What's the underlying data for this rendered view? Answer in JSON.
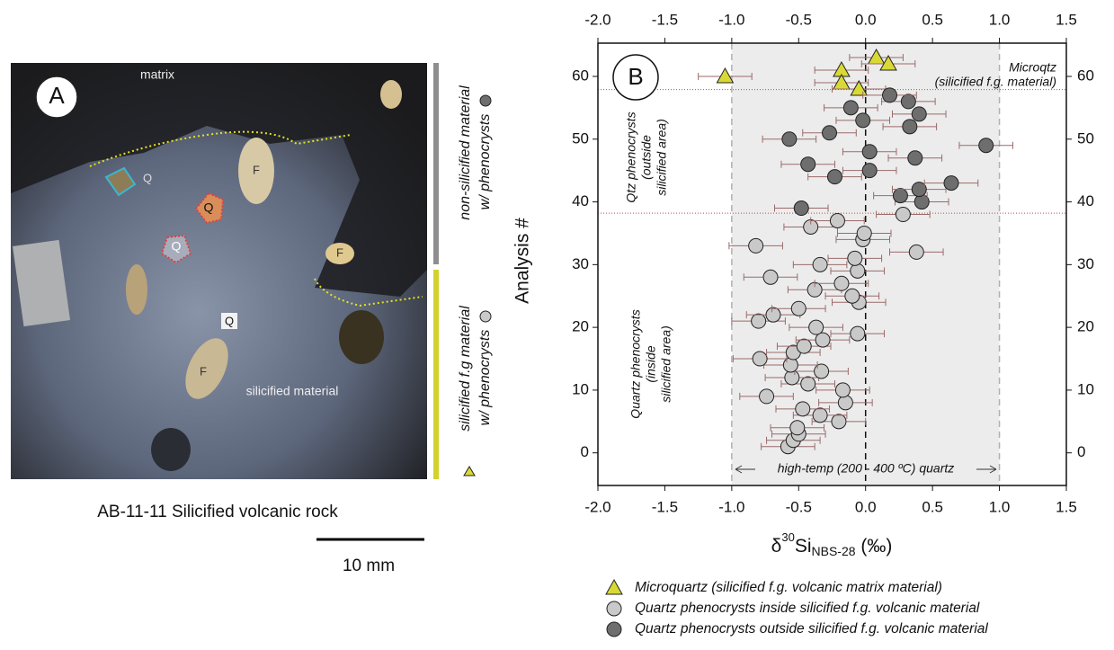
{
  "panel_a": {
    "label": "A",
    "matrix": "matrix",
    "silicified": "silicified material",
    "q_labels": [
      "Q",
      "Q",
      "Q",
      "Q"
    ],
    "f_labels": [
      "F",
      "F",
      "F"
    ],
    "side_top": [
      "non-silicified material",
      "w/ phenocrysts"
    ],
    "side_bottom": [
      "silicified f.g material",
      "w/ phenocrysts"
    ],
    "caption": "AB-11-11 Silicified volcanic rock",
    "scale_bar": "10 mm"
  },
  "chart_data": {
    "type": "scatter",
    "panel_label": "B",
    "x_label": [
      "δ",
      "30",
      "Si",
      "NBS-28",
      " (‰)"
    ],
    "y_label": "Analysis #",
    "xlim": [
      -2,
      1.5
    ],
    "ylim": [
      -5.2,
      65.3
    ],
    "xticks": [
      {
        "value": -2,
        "label": "-2.0"
      },
      -1.5,
      {
        "value": -1,
        "label": "-1.0"
      },
      -0.5,
      {
        "value": 0,
        "label": "0.0"
      },
      0.5,
      {
        "value": 1,
        "label": "1.0"
      },
      1.5
    ],
    "yticks": [
      0,
      10,
      20,
      30,
      40,
      50,
      60
    ],
    "shade": [
      -1,
      1
    ],
    "vlines": [
      -1,
      0,
      1
    ],
    "hlines": [
      57.9,
      38.2
    ],
    "annotations": {
      "microqtz": [
        "Microqtz",
        "(silicified f.g. material)"
      ],
      "outside": [
        "Qtz phenocrysts",
        "(outside",
        "silicified area)"
      ],
      "inside": [
        "Quartz phenocrysts",
        "(inside",
        "silicified area)"
      ],
      "hightemp": "high-temp (200 - 400 ºC) quartz"
    },
    "series": [
      {
        "name": "Microquartz (silicified f.g. volcanic matrix material)",
        "color": "#d9d936",
        "marker": "triangle",
        "x": [
          0.08,
          0.17,
          -0.18,
          -1.05,
          -0.18,
          -0.05
        ],
        "values": [
          63,
          62,
          61,
          60,
          59,
          58
        ],
        "xerr": 0.2
      },
      {
        "name": "Quartz phenocrysts inside silicified f.g. volcanic material",
        "color": "#c9c9c9",
        "marker": "circle",
        "x": [
          -0.58,
          -0.54,
          -0.5,
          -0.51,
          -0.2,
          -0.34,
          -0.47,
          -0.15,
          -0.74,
          -0.17,
          -0.43,
          -0.55,
          -0.33,
          -0.56,
          -0.79,
          -0.54,
          -0.46,
          -0.32,
          -0.06,
          -0.37,
          -0.8,
          -0.69,
          -0.5,
          -0.05,
          -0.1,
          -0.38,
          -0.18,
          -0.71,
          -0.06,
          -0.34,
          -0.08,
          0.38,
          -0.82,
          -0.02,
          -0.01,
          -0.41,
          -0.21,
          0.28
        ],
        "values": [
          1,
          2,
          3,
          4,
          5,
          6,
          7,
          8,
          9,
          10,
          11,
          12,
          13,
          14,
          15,
          16,
          17,
          18,
          19,
          20,
          21,
          22,
          23,
          24,
          25,
          26,
          27,
          28,
          29,
          30,
          31,
          32,
          33,
          34,
          35,
          36,
          37,
          38
        ],
        "xerr": 0.2
      },
      {
        "name": "Quartz phenocrysts outside silicified f.g. volcanic material",
        "color": "#6e6e6e",
        "marker": "circle",
        "x": [
          -0.48,
          0.42,
          0.26,
          0.4,
          0.64,
          -0.23,
          0.03,
          -0.43,
          0.37,
          0.03,
          0.9,
          -0.57,
          -0.27,
          0.33,
          -0.02,
          0.4,
          -0.11,
          0.32,
          0.18
        ],
        "values": [
          39,
          40,
          41,
          42,
          43,
          44,
          45,
          46,
          47,
          48,
          49,
          50,
          51,
          52,
          53,
          54,
          55,
          56,
          57
        ],
        "xerr": 0.2
      }
    ]
  }
}
